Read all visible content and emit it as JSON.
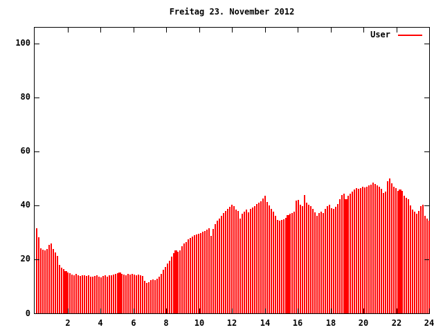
{
  "title": "Freitag 23. November 2012",
  "legend": {
    "label": "User",
    "line_color": "#ff0000"
  },
  "colors": {
    "background": "#ffffff",
    "axis": "#000000",
    "bars": "#ff0000"
  },
  "chart_data": {
    "type": "bar",
    "title": "Freitag 23. November 2012",
    "xlabel": "",
    "ylabel": "",
    "x_unit": "hour of day",
    "xlim": [
      0,
      24
    ],
    "ylim": [
      0,
      105.8
    ],
    "x_ticks": [
      2,
      4,
      6,
      8,
      10,
      12,
      14,
      16,
      18,
      20,
      22,
      24
    ],
    "y_ticks": [
      0,
      20,
      40,
      60,
      80,
      100
    ],
    "grid": false,
    "legend_position": "top-right-inside",
    "bar_style": "impulses",
    "samples_per_day": 190,
    "wide_bar_indices": [
      14,
      40,
      67,
      121,
      149,
      175
    ],
    "series": [
      {
        "name": "User",
        "color": "#ff0000",
        "values": [
          31.5,
          28.3,
          24.0,
          23.6,
          23.4,
          23.8,
          25.4,
          25.9,
          23.7,
          22.5,
          21.3,
          17.9,
          17.0,
          16.5,
          15.6,
          15.0,
          14.8,
          14.4,
          14.2,
          14.5,
          14.1,
          13.9,
          14.2,
          14.0,
          13.8,
          14.1,
          13.7,
          13.5,
          13.9,
          14.1,
          13.6,
          13.4,
          13.8,
          14.0,
          13.7,
          14.2,
          14.0,
          14.4,
          14.6,
          14.8,
          15.0,
          14.7,
          14.4,
          14.2,
          14.5,
          14.3,
          14.6,
          14.3,
          14.1,
          14.3,
          14.0,
          13.8,
          12.0,
          11.2,
          11.6,
          12.2,
          12.6,
          12.4,
          12.9,
          13.6,
          14.5,
          16.2,
          17.2,
          18.4,
          19.5,
          21.0,
          22.2,
          23.3,
          22.8,
          23.2,
          24.8,
          25.8,
          26.5,
          27.3,
          27.8,
          28.4,
          29.0,
          29.3,
          29.5,
          29.8,
          30.2,
          30.6,
          31.0,
          31.4,
          28.8,
          31.2,
          33.0,
          34.2,
          35.2,
          36.2,
          37.2,
          38.0,
          38.8,
          39.4,
          40.2,
          39.6,
          38.4,
          38.0,
          35.2,
          37.0,
          37.6,
          38.4,
          37.4,
          38.8,
          39.2,
          39.8,
          40.4,
          40.9,
          41.6,
          42.5,
          43.5,
          41.3,
          40.0,
          38.6,
          37.6,
          36.0,
          34.6,
          34.2,
          34.5,
          34.8,
          35.4,
          36.4,
          36.8,
          37.2,
          37.6,
          41.8,
          42.0,
          40.3,
          39.6,
          43.9,
          41.0,
          40.2,
          39.6,
          38.6,
          37.4,
          36.0,
          37.2,
          37.6,
          37.1,
          38.8,
          39.6,
          40.2,
          39.0,
          38.6,
          39.4,
          40.5,
          42.3,
          43.8,
          44.4,
          42.3,
          43.6,
          44.4,
          45.2,
          45.8,
          46.4,
          46.0,
          46.4,
          47.0,
          46.6,
          46.9,
          47.3,
          47.6,
          48.5,
          47.9,
          47.4,
          46.8,
          46.2,
          44.6,
          45.0,
          49.0,
          50.0,
          48.2,
          47.0,
          46.4,
          45.4,
          45.8,
          45.3,
          43.6,
          42.7,
          42.2,
          40.0,
          38.4,
          37.6,
          36.8,
          37.8,
          39.8,
          40.2,
          36.2,
          35.0,
          34.4
        ]
      }
    ]
  }
}
